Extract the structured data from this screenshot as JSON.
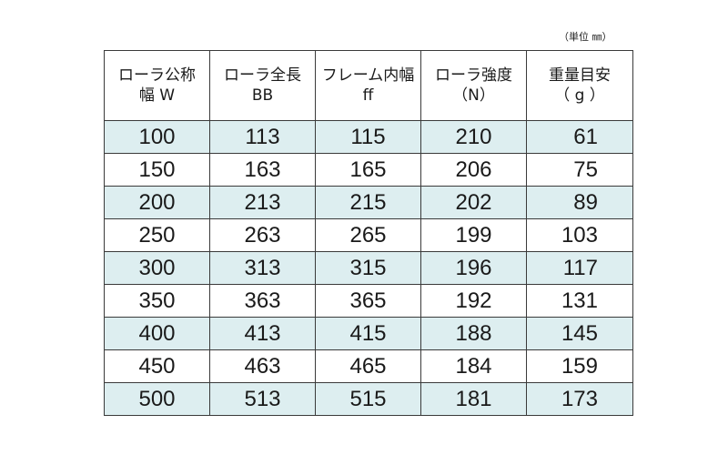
{
  "unit_note": "（単位 ㎜）",
  "headers": [
    {
      "line1": "ローラ公称",
      "line2": "幅 W"
    },
    {
      "line1": "ローラ全長",
      "line2": "BB"
    },
    {
      "line1": "フレーム内幅",
      "line2": "ff"
    },
    {
      "line1": "ローラ強度",
      "line2": "（N）"
    },
    {
      "line1": "重量目安",
      "line2": "（ g ）"
    }
  ],
  "rows": [
    [
      "100",
      "113",
      "115",
      "210",
      "61"
    ],
    [
      "150",
      "163",
      "165",
      "206",
      "75"
    ],
    [
      "200",
      "213",
      "215",
      "202",
      "89"
    ],
    [
      "250",
      "263",
      "265",
      "199",
      "103"
    ],
    [
      "300",
      "313",
      "315",
      "196",
      "117"
    ],
    [
      "350",
      "363",
      "365",
      "192",
      "131"
    ],
    [
      "400",
      "413",
      "415",
      "188",
      "145"
    ],
    [
      "450",
      "463",
      "465",
      "184",
      "159"
    ],
    [
      "500",
      "513",
      "515",
      "181",
      "173"
    ]
  ]
}
